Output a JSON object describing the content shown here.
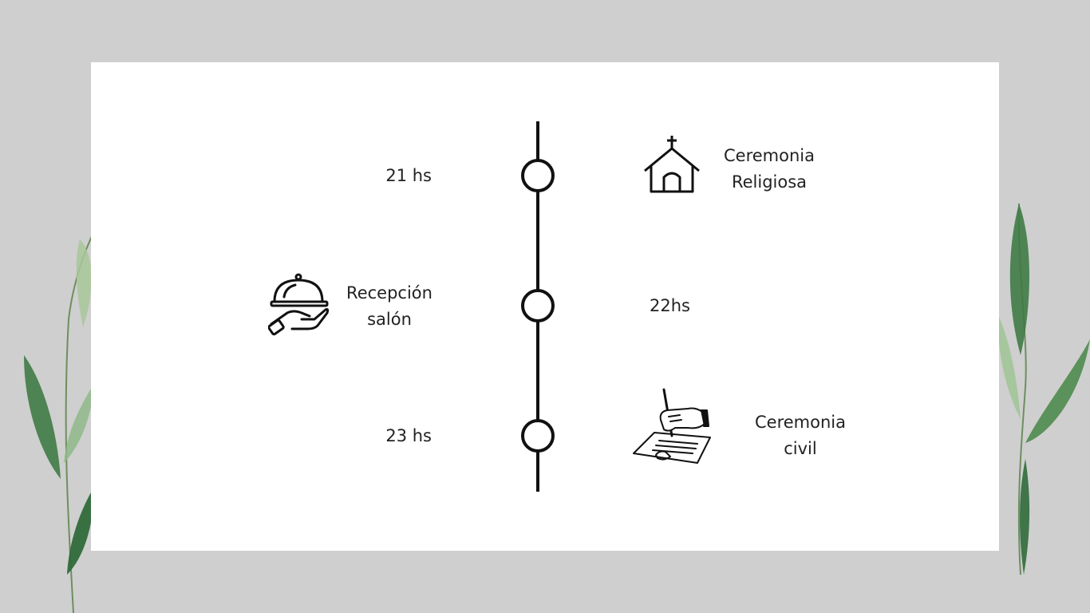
{
  "events": [
    {
      "time": "21 hs",
      "label_line1": "Ceremonia",
      "label_line2": "Religiosa",
      "icon": "church-icon"
    },
    {
      "time": "22hs",
      "label_line1": "Recepción",
      "label_line2": "salón",
      "icon": "serving-tray-icon"
    },
    {
      "time": "23 hs",
      "label_line1": "Ceremonia",
      "label_line2": "civil",
      "icon": "signing-document-icon"
    }
  ],
  "colors": {
    "background": "#cfcfcf",
    "card": "#ffffff",
    "line": "#111111",
    "text": "#222222",
    "leaf": "#4e8a4e"
  }
}
